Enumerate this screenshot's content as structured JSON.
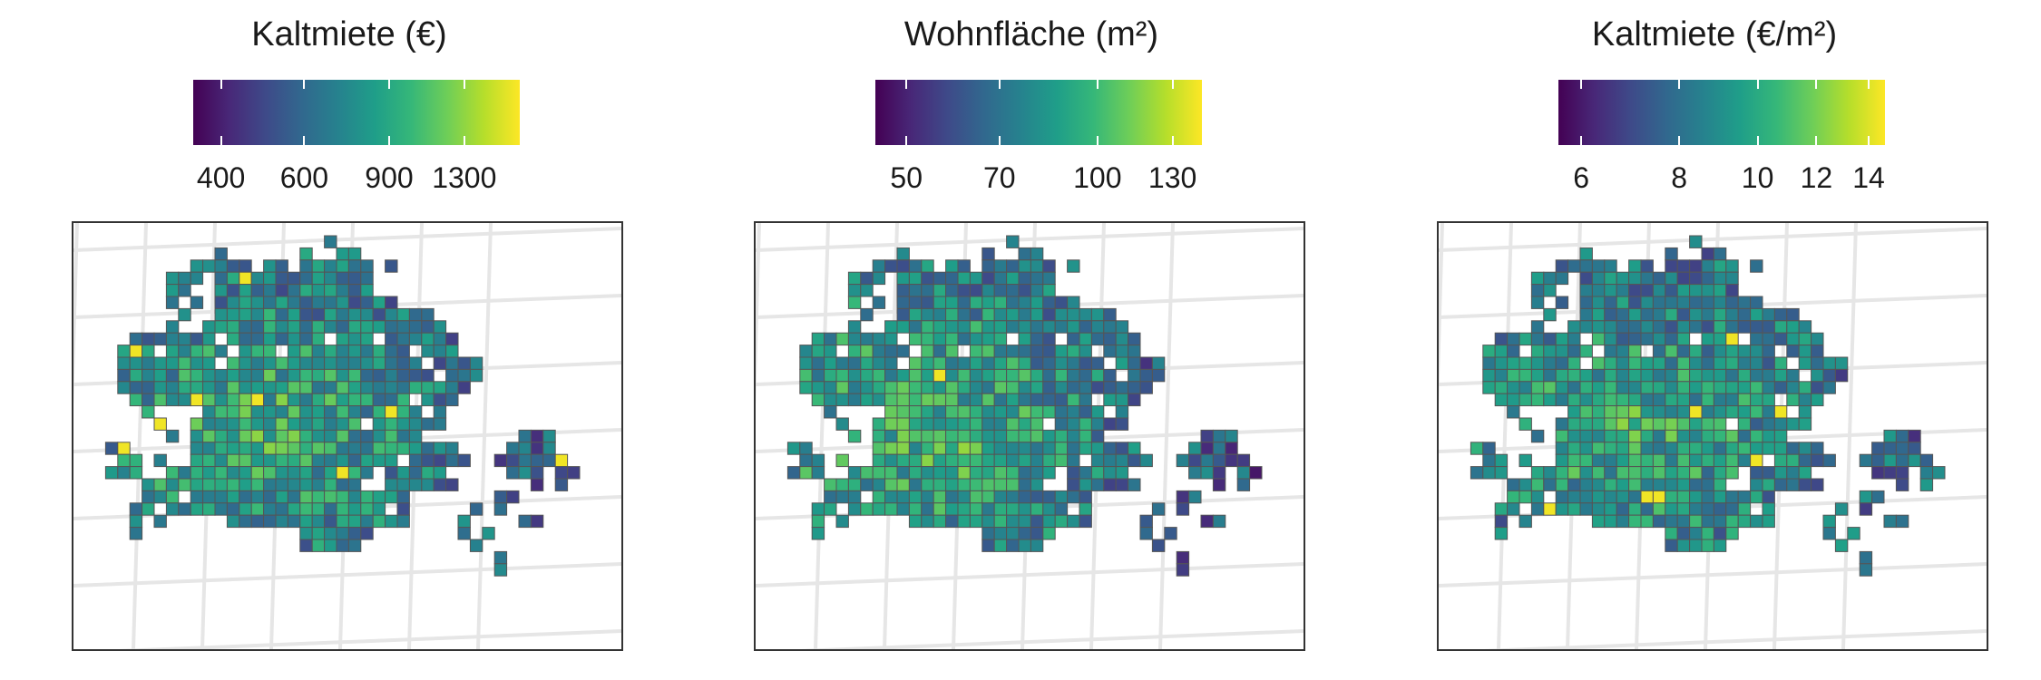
{
  "panels": [
    {
      "title": "Kaltmiete (€)",
      "ticks": [
        {
          "label": "400",
          "pos": 0.085
        },
        {
          "label": "600",
          "pos": 0.34
        },
        {
          "label": "900",
          "pos": 0.6
        },
        {
          "label": "1300",
          "pos": 0.83
        }
      ],
      "seed": 11,
      "skew": 0.0
    },
    {
      "title": "Wohnfläche (m²)",
      "ticks": [
        {
          "label": "50",
          "pos": 0.095
        },
        {
          "label": "70",
          "pos": 0.38
        },
        {
          "label": "100",
          "pos": 0.68
        },
        {
          "label": "130",
          "pos": 0.91
        }
      ],
      "seed": 29,
      "skew": 0.12
    },
    {
      "title": "Kaltmiete (€/m²)",
      "ticks": [
        {
          "label": "6",
          "pos": 0.07
        },
        {
          "label": "8",
          "pos": 0.37
        },
        {
          "label": "10",
          "pos": 0.61
        },
        {
          "label": "12",
          "pos": 0.79
        },
        {
          "label": "14",
          "pos": 0.95
        }
      ],
      "seed": 47,
      "skew": -0.05
    }
  ],
  "colors": {
    "scale": [
      "#440154",
      "#482878",
      "#3e4a89",
      "#31688e",
      "#26828e",
      "#1f9e89",
      "#35b779",
      "#6ece58",
      "#b5de2b",
      "#fde725"
    ],
    "cell_border": "#555555",
    "graticule": "#e6e6e6",
    "frame": "#333333"
  }
}
